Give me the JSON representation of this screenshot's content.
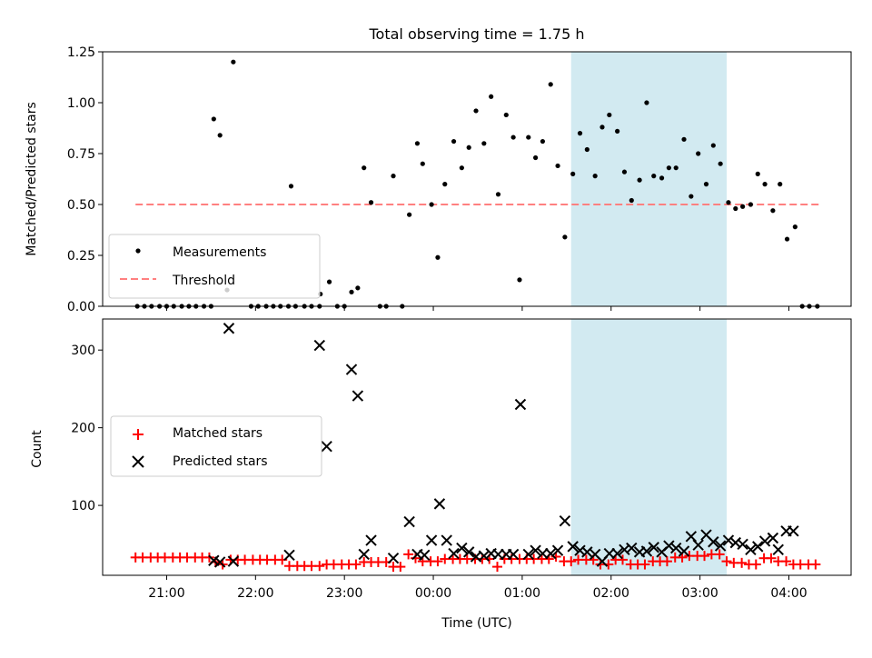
{
  "title": "Total observing time = 1.75 h",
  "colors": {
    "highlight": "#add8e6",
    "measurement": "#000000",
    "threshold": "#ff8080",
    "matched": "#ff0000",
    "predicted": "#000000"
  },
  "chart_data": [
    {
      "type": "scatter",
      "title": "Total observing time = 1.75 h",
      "xlabel": "",
      "ylabel": "Matched/Predicted stars",
      "ylim": [
        0,
        1.25
      ],
      "yticks": [
        "0.00",
        "0.25",
        "0.50",
        "0.75",
        "1.00",
        "1.25"
      ],
      "x_unit": "hours (UTC, relative to 00:00; negative = previous evening)",
      "legend": {
        "placement": "lower-left",
        "entries": [
          "Measurements",
          "Threshold"
        ]
      },
      "highlight_span": {
        "x_start": 1.55,
        "x_end": 3.3
      },
      "threshold": {
        "name": "Threshold",
        "y": 0.5,
        "x_start": -3.35,
        "x_end": 4.35
      },
      "series": [
        {
          "name": "Measurements",
          "points": [
            [
              -3.33,
              0
            ],
            [
              -3.25,
              0
            ],
            [
              -3.17,
              0
            ],
            [
              -3.08,
              0
            ],
            [
              -3.0,
              0
            ],
            [
              -2.92,
              0
            ],
            [
              -2.83,
              0
            ],
            [
              -2.75,
              0
            ],
            [
              -2.67,
              0
            ],
            [
              -2.58,
              0
            ],
            [
              -2.5,
              0
            ],
            [
              -2.47,
              0.92
            ],
            [
              -2.4,
              0.84
            ],
            [
              -2.32,
              0.08
            ],
            [
              -2.25,
              1.2
            ],
            [
              -2.05,
              0
            ],
            [
              -1.97,
              0
            ],
            [
              -1.88,
              0
            ],
            [
              -1.8,
              0
            ],
            [
              -1.72,
              0
            ],
            [
              -1.63,
              0
            ],
            [
              -1.55,
              0
            ],
            [
              -1.6,
              0.59
            ],
            [
              -1.45,
              0
            ],
            [
              -1.37,
              0
            ],
            [
              -1.28,
              0
            ],
            [
              -1.27,
              0.06
            ],
            [
              -1.17,
              0.12
            ],
            [
              -1.08,
              0
            ],
            [
              -1.0,
              0
            ],
            [
              -0.92,
              0.07
            ],
            [
              -0.85,
              0.09
            ],
            [
              -0.78,
              0.68
            ],
            [
              -0.7,
              0.51
            ],
            [
              -0.6,
              0
            ],
            [
              -0.53,
              0
            ],
            [
              -0.45,
              0.64
            ],
            [
              -0.35,
              0
            ],
            [
              -0.27,
              0.45
            ],
            [
              -0.18,
              0.8
            ],
            [
              -0.12,
              0.7
            ],
            [
              -0.02,
              0.5
            ],
            [
              0.05,
              0.24
            ],
            [
              0.13,
              0.6
            ],
            [
              0.23,
              0.81
            ],
            [
              0.32,
              0.68
            ],
            [
              0.4,
              0.78
            ],
            [
              0.48,
              0.96
            ],
            [
              0.57,
              0.8
            ],
            [
              0.65,
              1.03
            ],
            [
              0.73,
              0.55
            ],
            [
              0.82,
              0.94
            ],
            [
              0.9,
              0.83
            ],
            [
              0.97,
              0.13
            ],
            [
              1.07,
              0.83
            ],
            [
              1.15,
              0.73
            ],
            [
              1.23,
              0.81
            ],
            [
              1.32,
              1.09
            ],
            [
              1.4,
              0.69
            ],
            [
              1.48,
              0.34
            ],
            [
              1.57,
              0.65
            ],
            [
              1.65,
              0.85
            ],
            [
              1.73,
              0.77
            ],
            [
              1.82,
              0.64
            ],
            [
              1.9,
              0.88
            ],
            [
              1.98,
              0.94
            ],
            [
              2.07,
              0.86
            ],
            [
              2.15,
              0.66
            ],
            [
              2.23,
              0.52
            ],
            [
              2.32,
              0.62
            ],
            [
              2.4,
              1.0
            ],
            [
              2.48,
              0.64
            ],
            [
              2.57,
              0.63
            ],
            [
              2.65,
              0.68
            ],
            [
              2.73,
              0.68
            ],
            [
              2.82,
              0.82
            ],
            [
              2.9,
              0.54
            ],
            [
              2.98,
              0.75
            ],
            [
              3.07,
              0.6
            ],
            [
              3.15,
              0.79
            ],
            [
              3.23,
              0.7
            ],
            [
              3.32,
              0.51
            ],
            [
              3.4,
              0.48
            ],
            [
              3.48,
              0.49
            ],
            [
              3.57,
              0.5
            ],
            [
              3.65,
              0.65
            ],
            [
              3.73,
              0.6
            ],
            [
              3.82,
              0.47
            ],
            [
              3.9,
              0.6
            ],
            [
              3.98,
              0.33
            ],
            [
              4.07,
              0.39
            ],
            [
              4.15,
              0
            ],
            [
              4.23,
              0
            ],
            [
              4.32,
              0
            ]
          ]
        }
      ]
    },
    {
      "type": "scatter",
      "title": "",
      "xlabel": "Time (UTC)",
      "ylabel": "Count",
      "ylim": [
        10,
        340
      ],
      "yticks": [
        "100",
        "200",
        "300"
      ],
      "xticks": [
        {
          "x": -3,
          "label": "21:00"
        },
        {
          "x": -2,
          "label": "22:00"
        },
        {
          "x": -1,
          "label": "23:00"
        },
        {
          "x": 0,
          "label": "00:00"
        },
        {
          "x": 1,
          "label": "01:00"
        },
        {
          "x": 2,
          "label": "02:00"
        },
        {
          "x": 3,
          "label": "03:00"
        },
        {
          "x": 4,
          "label": "04:00"
        }
      ],
      "legend": {
        "placement": "center-left",
        "entries": [
          "Matched stars",
          "Predicted stars"
        ]
      },
      "highlight_span": {
        "x_start": 1.55,
        "x_end": 3.3
      },
      "series": [
        {
          "name": "Matched stars",
          "points": [
            [
              -3.35,
              33
            ],
            [
              -3.27,
              33
            ],
            [
              -3.18,
              33
            ],
            [
              -3.1,
              33
            ],
            [
              -3.02,
              33
            ],
            [
              -2.93,
              33
            ],
            [
              -2.85,
              33
            ],
            [
              -2.77,
              33
            ],
            [
              -2.68,
              33
            ],
            [
              -2.6,
              33
            ],
            [
              -2.52,
              33
            ],
            [
              -2.45,
              27
            ],
            [
              -2.37,
              24
            ],
            [
              -2.28,
              30
            ],
            [
              -2.2,
              30
            ],
            [
              -2.12,
              30
            ],
            [
              -2.03,
              30
            ],
            [
              -1.95,
              30
            ],
            [
              -1.87,
              30
            ],
            [
              -1.78,
              30
            ],
            [
              -1.7,
              30
            ],
            [
              -1.62,
              22
            ],
            [
              -1.53,
              22
            ],
            [
              -1.45,
              22
            ],
            [
              -1.37,
              22
            ],
            [
              -1.28,
              22
            ],
            [
              -1.2,
              24
            ],
            [
              -1.12,
              24
            ],
            [
              -1.03,
              24
            ],
            [
              -0.95,
              24
            ],
            [
              -0.87,
              24
            ],
            [
              -0.78,
              27
            ],
            [
              -0.7,
              27
            ],
            [
              -0.62,
              27
            ],
            [
              -0.53,
              27
            ],
            [
              -0.45,
              21
            ],
            [
              -0.37,
              21
            ],
            [
              -0.28,
              37
            ],
            [
              -0.2,
              32
            ],
            [
              -0.12,
              28
            ],
            [
              -0.03,
              28
            ],
            [
              0.05,
              28
            ],
            [
              0.13,
              31
            ],
            [
              0.22,
              31
            ],
            [
              0.3,
              31
            ],
            [
              0.38,
              31
            ],
            [
              0.47,
              31
            ],
            [
              0.55,
              31
            ],
            [
              0.63,
              31
            ],
            [
              0.72,
              21
            ],
            [
              0.8,
              31
            ],
            [
              0.88,
              31
            ],
            [
              0.97,
              31
            ],
            [
              1.05,
              31
            ],
            [
              1.13,
              31
            ],
            [
              1.22,
              31
            ],
            [
              1.3,
              31
            ],
            [
              1.38,
              34
            ],
            [
              1.47,
              28
            ],
            [
              1.55,
              28
            ],
            [
              1.63,
              30
            ],
            [
              1.72,
              30
            ],
            [
              1.8,
              30
            ],
            [
              1.88,
              24
            ],
            [
              1.97,
              24
            ],
            [
              2.05,
              30
            ],
            [
              2.13,
              30
            ],
            [
              2.22,
              24
            ],
            [
              2.3,
              24
            ],
            [
              2.38,
              24
            ],
            [
              2.47,
              28
            ],
            [
              2.55,
              28
            ],
            [
              2.63,
              28
            ],
            [
              2.72,
              33
            ],
            [
              2.8,
              33
            ],
            [
              2.88,
              35
            ],
            [
              2.97,
              35
            ],
            [
              3.05,
              35
            ],
            [
              3.13,
              37
            ],
            [
              3.22,
              37
            ],
            [
              3.3,
              28
            ],
            [
              3.38,
              26
            ],
            [
              3.47,
              26
            ],
            [
              3.55,
              24
            ],
            [
              3.63,
              24
            ],
            [
              3.72,
              32
            ],
            [
              3.8,
              32
            ],
            [
              3.88,
              28
            ],
            [
              3.97,
              28
            ],
            [
              4.05,
              24
            ],
            [
              4.13,
              24
            ],
            [
              4.22,
              24
            ],
            [
              4.3,
              24
            ]
          ]
        },
        {
          "name": "Predicted stars",
          "points": [
            [
              -2.47,
              29
            ],
            [
              -2.4,
              27
            ],
            [
              -2.3,
              328
            ],
            [
              -2.25,
              28
            ],
            [
              -1.62,
              36
            ],
            [
              -1.28,
              306
            ],
            [
              -1.2,
              176
            ],
            [
              -0.92,
              275
            ],
            [
              -0.85,
              241
            ],
            [
              -0.78,
              37
            ],
            [
              -0.7,
              55
            ],
            [
              -0.45,
              32
            ],
            [
              -0.27,
              79
            ],
            [
              -0.18,
              37
            ],
            [
              -0.1,
              36
            ],
            [
              -0.02,
              55
            ],
            [
              0.07,
              102
            ],
            [
              0.15,
              55
            ],
            [
              0.23,
              38
            ],
            [
              0.32,
              45
            ],
            [
              0.4,
              40
            ],
            [
              0.48,
              34
            ],
            [
              0.57,
              35
            ],
            [
              0.65,
              38
            ],
            [
              0.73,
              37
            ],
            [
              0.82,
              37
            ],
            [
              0.9,
              37
            ],
            [
              0.98,
              230
            ],
            [
              1.07,
              37
            ],
            [
              1.15,
              42
            ],
            [
              1.23,
              38
            ],
            [
              1.32,
              38
            ],
            [
              1.4,
              42
            ],
            [
              1.48,
              80
            ],
            [
              1.57,
              47
            ],
            [
              1.65,
              42
            ],
            [
              1.73,
              40
            ],
            [
              1.82,
              37
            ],
            [
              1.9,
              28
            ],
            [
              1.98,
              38
            ],
            [
              2.07,
              38
            ],
            [
              2.15,
              43
            ],
            [
              2.23,
              45
            ],
            [
              2.32,
              40
            ],
            [
              2.4,
              41
            ],
            [
              2.48,
              46
            ],
            [
              2.57,
              40
            ],
            [
              2.65,
              48
            ],
            [
              2.73,
              45
            ],
            [
              2.82,
              41
            ],
            [
              2.9,
              60
            ],
            [
              2.98,
              49
            ],
            [
              3.07,
              62
            ],
            [
              3.15,
              53
            ],
            [
              3.23,
              48
            ],
            [
              3.32,
              55
            ],
            [
              3.4,
              52
            ],
            [
              3.48,
              50
            ],
            [
              3.57,
              43
            ],
            [
              3.65,
              47
            ],
            [
              3.73,
              54
            ],
            [
              3.82,
              58
            ],
            [
              3.88,
              43
            ],
            [
              3.97,
              67
            ],
            [
              4.05,
              67
            ]
          ]
        }
      ]
    }
  ]
}
